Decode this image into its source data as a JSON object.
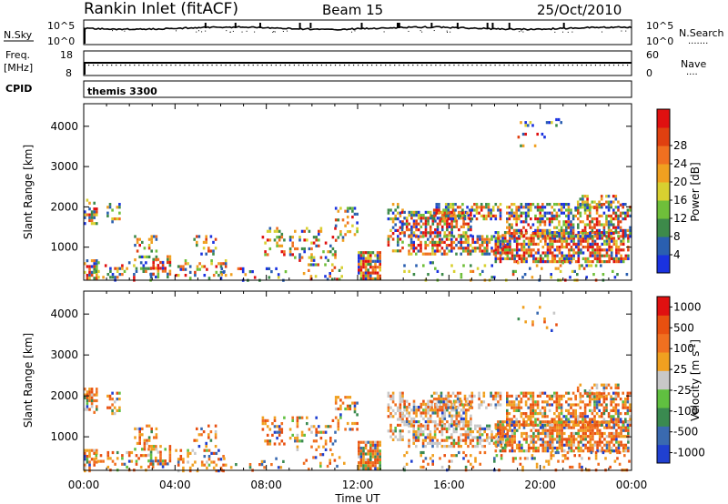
{
  "header": {
    "title": "Rankin Inlet (fitACF)",
    "beam": "Beam 15",
    "date": "25/Oct/2010"
  },
  "panels": {
    "nsky": {
      "left_label": "N.Sky",
      "right_label": "N.Search",
      "left_ticks": [
        "10^5",
        "10^0"
      ],
      "right_ticks": [
        "10^5",
        "10^0"
      ],
      "right_key": "......."
    },
    "freq": {
      "left_label_top": "Freq.",
      "left_label_bottom": "[MHz]",
      "right_label": "Nave",
      "left_ticks": [
        "18",
        "8"
      ],
      "right_ticks": [
        "60",
        "0"
      ],
      "right_key": "...."
    },
    "cpid": {
      "label": "CPID",
      "value": "themis 3300"
    }
  },
  "colors": {
    "power": [
      "#1a32e0",
      "#2a5fb0",
      "#3d8a4a",
      "#6fbf3a",
      "#d8d030",
      "#f0a020",
      "#f07020",
      "#e04010",
      "#e01010"
    ],
    "velocity": [
      "#2040d0",
      "#3a6ab0",
      "#3a8a50",
      "#60c040",
      "#c8c8c8",
      "#f0a020",
      "#f07020",
      "#e85010",
      "#e01010"
    ]
  },
  "chart_data": [
    {
      "type": "heatmap",
      "name": "power",
      "xlabel": "",
      "ylabel": "Slant Range [km]",
      "x_ticks": [
        "00:00",
        "04:00",
        "08:00",
        "12:00",
        "16:00",
        "20:00",
        "00:00"
      ],
      "xlim_hours": [
        0,
        24
      ],
      "ylim": [
        180,
        4560
      ],
      "y_ticks": [
        1000,
        2000,
        3000,
        4000
      ],
      "colorbar": {
        "label": "Power [dB]",
        "ticks": [
          "4",
          "8",
          "12",
          "16",
          "20",
          "24",
          "28"
        ]
      }
    },
    {
      "type": "heatmap",
      "name": "velocity",
      "xlabel": "Time UT",
      "ylabel": "Slant Range [km]",
      "x_ticks": [
        "00:00",
        "04:00",
        "08:00",
        "12:00",
        "16:00",
        "20:00",
        "00:00"
      ],
      "xlim_hours": [
        0,
        24
      ],
      "ylim": [
        180,
        4560
      ],
      "y_ticks": [
        1000,
        2000,
        3000,
        4000
      ],
      "colorbar": {
        "label_main": "Velocity",
        "label_units": "[m s",
        "label_sup": "-1",
        "label_close": "]",
        "ticks": [
          "1000",
          "500",
          "100",
          "25",
          "-25",
          "-100",
          "-500",
          "-1000"
        ]
      }
    }
  ],
  "scatter_regions": [
    {
      "t0": 0.0,
      "t1": 0.6,
      "r0": 200,
      "r1": 700,
      "density": 0.55,
      "core": 0.65
    },
    {
      "t0": 0.0,
      "t1": 0.6,
      "r0": 1600,
      "r1": 2200,
      "density": 0.5,
      "core": 0.35
    },
    {
      "t0": 1.0,
      "t1": 1.6,
      "r0": 1600,
      "r1": 2100,
      "density": 0.45,
      "core": 0.3
    },
    {
      "t0": 0.5,
      "t1": 3.0,
      "r0": 200,
      "r1": 650,
      "density": 0.25,
      "core": 0.2
    },
    {
      "t0": 2.2,
      "t1": 3.2,
      "r0": 700,
      "r1": 1300,
      "density": 0.35,
      "core": 0.3
    },
    {
      "t0": 2.8,
      "t1": 3.8,
      "r0": 250,
      "r1": 800,
      "density": 0.4,
      "core": 0.6
    },
    {
      "t0": 4.0,
      "t1": 6.2,
      "r0": 200,
      "r1": 700,
      "density": 0.3,
      "core": 0.5
    },
    {
      "t0": 4.8,
      "t1": 5.8,
      "r0": 800,
      "r1": 1300,
      "density": 0.3,
      "core": 0.3
    },
    {
      "t0": 6.0,
      "t1": 9.0,
      "r0": 200,
      "r1": 500,
      "density": 0.15,
      "core": 0.2
    },
    {
      "t0": 7.8,
      "t1": 8.8,
      "r0": 800,
      "r1": 1500,
      "density": 0.3,
      "core": 0.35
    },
    {
      "t0": 9.0,
      "t1": 11.0,
      "r0": 700,
      "r1": 1500,
      "density": 0.25,
      "core": 0.35
    },
    {
      "t0": 9.6,
      "t1": 11.4,
      "r0": 200,
      "r1": 600,
      "density": 0.2,
      "core": 0.3
    },
    {
      "t0": 11.0,
      "t1": 12.0,
      "r0": 1200,
      "r1": 2000,
      "density": 0.3,
      "core": 0.3
    },
    {
      "t0": 12.0,
      "t1": 13.0,
      "r0": 200,
      "r1": 900,
      "density": 0.9,
      "core": 0.8
    },
    {
      "t0": 13.3,
      "t1": 14.0,
      "r0": 900,
      "r1": 2100,
      "density": 0.45,
      "core": 0.4
    },
    {
      "t0": 13.9,
      "t1": 17.0,
      "r0": 1300,
      "r1": 1900,
      "density": 0.65,
      "core": 0.55
    },
    {
      "t0": 14.2,
      "t1": 18.5,
      "r0": 800,
      "r1": 1300,
      "density": 0.6,
      "core": 0.6
    },
    {
      "t0": 15.2,
      "t1": 18.3,
      "r0": 1700,
      "r1": 2100,
      "density": 0.5,
      "core": 0.35
    },
    {
      "t0": 18.0,
      "t1": 23.9,
      "r0": 650,
      "r1": 1400,
      "density": 0.7,
      "core": 0.65
    },
    {
      "t0": 18.5,
      "t1": 23.9,
      "r0": 1300,
      "r1": 2100,
      "density": 0.55,
      "core": 0.4
    },
    {
      "t0": 14.0,
      "t1": 23.9,
      "r0": 200,
      "r1": 650,
      "density": 0.15,
      "core": 0.2
    },
    {
      "t0": 21.5,
      "t1": 23.5,
      "r0": 2000,
      "r1": 2300,
      "density": 0.35,
      "core": 0.25
    },
    {
      "t0": 19.0,
      "t1": 21.0,
      "r0": 3500,
      "r1": 4200,
      "density": 0.08,
      "core": 0.2
    }
  ]
}
